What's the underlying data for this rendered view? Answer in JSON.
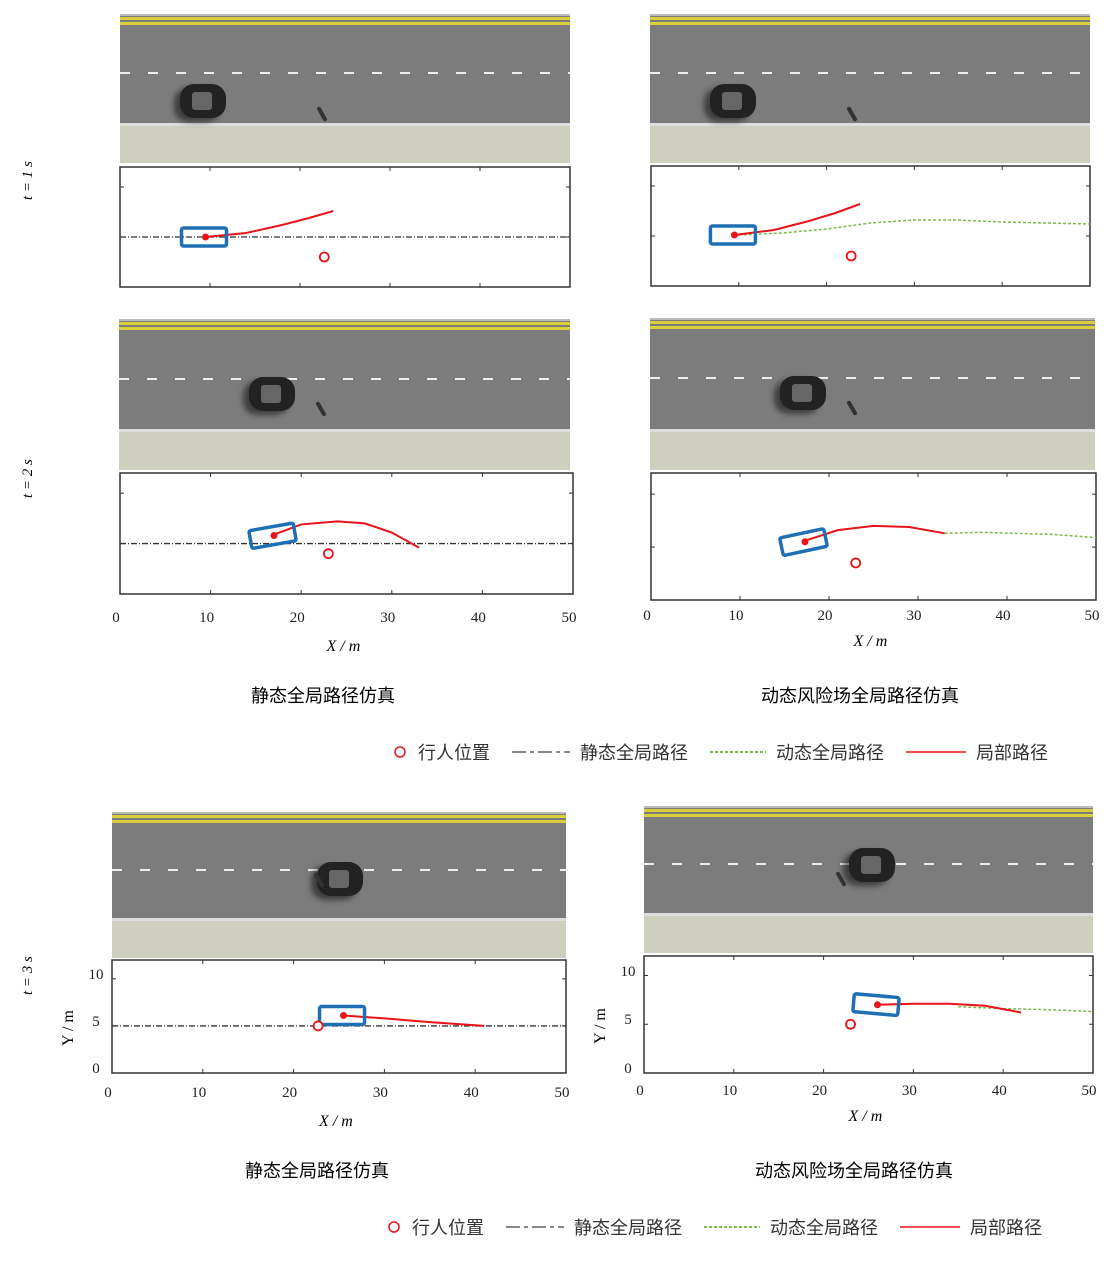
{
  "colors": {
    "local": "#e8141b",
    "static": "#333333",
    "dynamic": "#7cb84a",
    "vehicle": "#1f6fb4",
    "pedestrian": "#e8141b"
  },
  "row_labels": [
    "t = 1 s",
    "t = 2 s",
    "t = 3 s"
  ],
  "captions": {
    "static": "静态全局路径仿真",
    "dynamic": "动态风险场全局路径仿真"
  },
  "legend": {
    "pedestrian": "行人位置",
    "static": "静态全局路径",
    "dynamic": "动态全局路径",
    "local": "局部路径"
  },
  "axes": {
    "xlabel": "X / m",
    "ylabel": "Y / m",
    "xticks": [
      "0",
      "10",
      "20",
      "30",
      "40",
      "50"
    ],
    "yticks": [
      "0",
      "5",
      "10"
    ]
  },
  "chart_data": [
    {
      "type": "line",
      "title": "t=1s static",
      "xlim": [
        0,
        50
      ],
      "ylim": [
        0,
        12
      ],
      "vehicle": {
        "x": 9.5,
        "y": 5,
        "heading": 0
      },
      "pedestrian": {
        "x": 22.7,
        "y": 3
      },
      "series": [
        {
          "name": "静态全局路径",
          "x": [
            0,
            50
          ],
          "y": [
            5,
            5
          ]
        },
        {
          "name": "局部路径",
          "x": [
            9.5,
            14,
            18,
            21,
            23.7
          ],
          "y": [
            5,
            5.4,
            6.2,
            6.9,
            7.6
          ]
        }
      ]
    },
    {
      "type": "line",
      "title": "t=1s dynamic",
      "xlim": [
        0,
        50
      ],
      "ylim": [
        0,
        12
      ],
      "vehicle": {
        "x": 9.5,
        "y": 5.1,
        "heading": 0
      },
      "pedestrian": {
        "x": 22.8,
        "y": 3
      },
      "series": [
        {
          "name": "动态全局路径",
          "x": [
            10,
            15,
            20,
            25,
            30,
            35,
            40,
            45,
            50
          ],
          "y": [
            5.1,
            5.3,
            5.7,
            6.3,
            6.6,
            6.6,
            6.4,
            6.3,
            6.2
          ]
        },
        {
          "name": "局部路径",
          "x": [
            9.5,
            14,
            18,
            21,
            23.8
          ],
          "y": [
            5.1,
            5.6,
            6.5,
            7.3,
            8.2
          ]
        }
      ]
    },
    {
      "type": "line",
      "title": "t=2s static",
      "xlim": [
        0,
        50
      ],
      "ylim": [
        0,
        12
      ],
      "vehicle": {
        "x": 17,
        "y": 5.8,
        "heading": 10
      },
      "pedestrian": {
        "x": 23,
        "y": 4
      },
      "series": [
        {
          "name": "静态全局路径",
          "x": [
            0,
            50
          ],
          "y": [
            5,
            5
          ]
        },
        {
          "name": "局部路径",
          "x": [
            17,
            20,
            24,
            27,
            30,
            33
          ],
          "y": [
            5.9,
            6.9,
            7.2,
            7,
            6.1,
            4.6
          ]
        }
      ]
    },
    {
      "type": "line",
      "title": "t=2s dynamic",
      "xlim": [
        0,
        50
      ],
      "ylim": [
        0,
        12
      ],
      "vehicle": {
        "x": 17.3,
        "y": 5.5,
        "heading": 12
      },
      "pedestrian": {
        "x": 23,
        "y": 3.5
      },
      "series": [
        {
          "name": "动态全局路径",
          "x": [
            33,
            37,
            41,
            45,
            50
          ],
          "y": [
            6.3,
            6.4,
            6.3,
            6.2,
            5.9
          ]
        },
        {
          "name": "局部路径",
          "x": [
            17.3,
            21,
            25,
            29,
            33
          ],
          "y": [
            5.6,
            6.6,
            7,
            6.9,
            6.3
          ]
        }
      ]
    },
    {
      "type": "line",
      "title": "t=3s static",
      "xlim": [
        0,
        50
      ],
      "ylim": [
        0,
        12
      ],
      "vehicle": {
        "x": 25.5,
        "y": 6.1,
        "heading": 0
      },
      "pedestrian": {
        "x": 22.7,
        "y": 5
      },
      "series": [
        {
          "name": "静态全局路径",
          "x": [
            0,
            50
          ],
          "y": [
            5,
            5
          ]
        },
        {
          "name": "局部路径",
          "x": [
            25.5,
            30,
            35,
            41
          ],
          "y": [
            6.1,
            5.8,
            5.4,
            5
          ]
        }
      ]
    },
    {
      "type": "line",
      "title": "t=3s dynamic",
      "xlim": [
        0,
        50
      ],
      "ylim": [
        0,
        12
      ],
      "vehicle": {
        "x": 26,
        "y": 7,
        "heading": -5
      },
      "pedestrian": {
        "x": 23,
        "y": 5
      },
      "series": [
        {
          "name": "动态全局路径",
          "x": [
            35,
            40,
            45,
            50
          ],
          "y": [
            6.8,
            6.6,
            6.5,
            6.3
          ]
        },
        {
          "name": "局部路径",
          "x": [
            26,
            30,
            34,
            38,
            42
          ],
          "y": [
            7,
            7.1,
            7.1,
            6.9,
            6.2
          ]
        }
      ]
    }
  ]
}
